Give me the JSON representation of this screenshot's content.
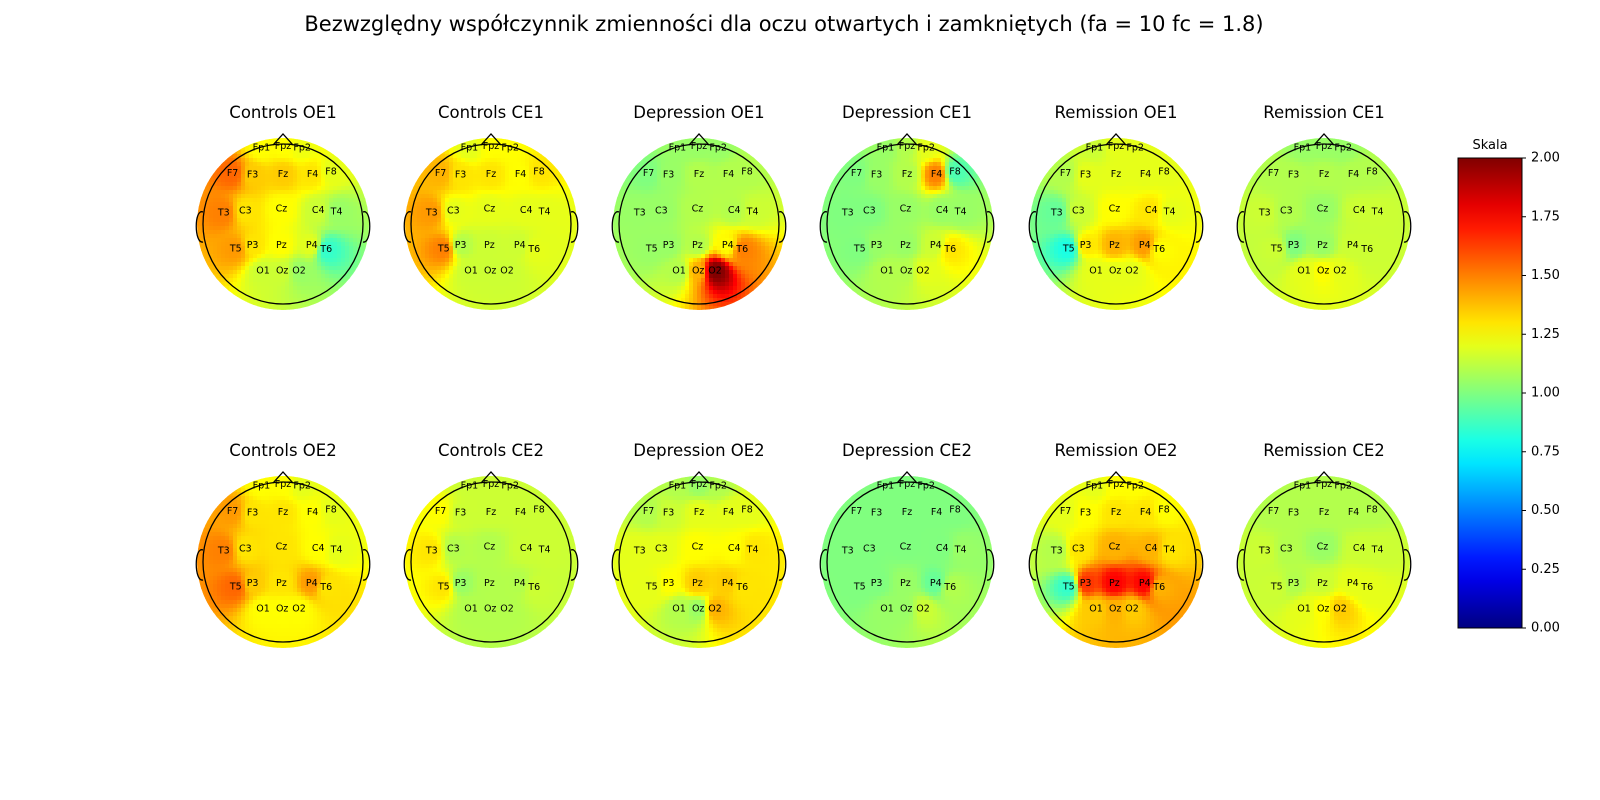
{
  "title": "Bezwzględny współczynnik zmienności dla oczu otwartych i zamkniętych (fa = 10 fc = 1.8)",
  "chart_data": {
    "type": "heatmap",
    "subtype": "eeg-topomap",
    "colormap": "jet",
    "electrodes": [
      "Fp1",
      "Fpz",
      "Fp2",
      "F7",
      "F3",
      "Fz",
      "F4",
      "F8",
      "T3",
      "C3",
      "Cz",
      "C4",
      "T4",
      "T5",
      "P3",
      "Pz",
      "P4",
      "T6",
      "O1",
      "Oz",
      "O2"
    ],
    "panels": [
      {
        "title": "Controls OE1",
        "values": [
          1.25,
          1.25,
          1.22,
          1.55,
          1.35,
          1.35,
          1.3,
          1.2,
          1.5,
          1.3,
          1.25,
          1.15,
          1.05,
          1.45,
          1.3,
          1.25,
          1.2,
          0.85,
          1.15,
          1.15,
          1.05
        ]
      },
      {
        "title": "Controls CE1",
        "values": [
          1.2,
          1.25,
          1.25,
          1.4,
          1.3,
          1.3,
          1.25,
          1.3,
          1.45,
          1.2,
          1.2,
          1.2,
          1.2,
          1.5,
          1.1,
          1.15,
          1.15,
          1.2,
          1.15,
          1.15,
          1.15
        ]
      },
      {
        "title": "Depression OE1",
        "values": [
          1.05,
          1.05,
          1.05,
          1.0,
          1.05,
          1.1,
          1.1,
          1.1,
          1.05,
          1.05,
          1.1,
          1.1,
          1.15,
          1.05,
          1.05,
          1.1,
          1.25,
          1.5,
          1.1,
          1.4,
          2.0
        ]
      },
      {
        "title": "Depression CE1",
        "values": [
          1.05,
          1.1,
          1.2,
          1.0,
          1.05,
          1.1,
          1.5,
          0.9,
          1.0,
          1.0,
          1.05,
          1.05,
          1.05,
          1.0,
          1.05,
          1.05,
          1.15,
          1.3,
          1.1,
          1.1,
          1.2
        ]
      },
      {
        "title": "Remission OE1",
        "values": [
          1.15,
          1.2,
          1.2,
          1.1,
          1.2,
          1.2,
          1.2,
          1.2,
          0.95,
          1.15,
          1.25,
          1.3,
          1.2,
          0.8,
          1.3,
          1.4,
          1.45,
          1.25,
          1.2,
          1.2,
          1.2
        ]
      },
      {
        "title": "Remission CE1",
        "values": [
          1.05,
          1.05,
          1.05,
          1.1,
          1.1,
          1.1,
          1.1,
          1.1,
          1.15,
          1.1,
          1.05,
          1.15,
          1.15,
          1.15,
          1.0,
          1.05,
          1.15,
          1.15,
          1.2,
          1.25,
          1.2
        ]
      },
      {
        "title": "Controls OE2",
        "values": [
          1.25,
          1.25,
          1.2,
          1.45,
          1.3,
          1.3,
          1.25,
          1.2,
          1.5,
          1.3,
          1.3,
          1.25,
          1.2,
          1.55,
          1.35,
          1.3,
          1.45,
          1.3,
          1.25,
          1.25,
          1.25
        ]
      },
      {
        "title": "Controls CE2",
        "values": [
          1.15,
          1.15,
          1.15,
          1.25,
          1.15,
          1.15,
          1.15,
          1.15,
          1.3,
          1.1,
          1.1,
          1.15,
          1.15,
          1.3,
          1.05,
          1.1,
          1.1,
          1.15,
          1.1,
          1.1,
          1.1
        ]
      },
      {
        "title": "Depression OE2",
        "values": [
          1.1,
          1.05,
          1.1,
          1.1,
          1.15,
          1.2,
          1.2,
          1.2,
          1.2,
          1.2,
          1.25,
          1.25,
          1.3,
          1.2,
          1.25,
          1.35,
          1.35,
          1.3,
          1.1,
          1.05,
          1.4
        ]
      },
      {
        "title": "Depression CE2",
        "values": [
          1.0,
          1.0,
          1.0,
          1.0,
          1.0,
          1.0,
          1.0,
          1.0,
          1.0,
          1.0,
          1.0,
          1.0,
          1.05,
          1.0,
          1.0,
          1.05,
          0.95,
          1.1,
          1.05,
          1.05,
          1.15
        ]
      },
      {
        "title": "Remission OE2",
        "values": [
          1.2,
          1.25,
          1.25,
          1.2,
          1.25,
          1.3,
          1.3,
          1.25,
          1.1,
          1.3,
          1.4,
          1.4,
          1.3,
          0.85,
          1.65,
          1.75,
          1.75,
          1.4,
          1.35,
          1.4,
          1.35
        ]
      },
      {
        "title": "Remission CE2",
        "values": [
          1.1,
          1.1,
          1.1,
          1.1,
          1.1,
          1.1,
          1.1,
          1.1,
          1.15,
          1.1,
          1.05,
          1.15,
          1.15,
          1.15,
          1.1,
          1.15,
          1.2,
          1.2,
          1.2,
          1.25,
          1.35
        ]
      }
    ],
    "colorbar": {
      "title": "Skala",
      "range": [
        0,
        2
      ],
      "ticks": [
        "0.00",
        "0.25",
        "0.50",
        "0.75",
        "1.00",
        "1.25",
        "1.50",
        "1.75",
        "2.00"
      ]
    }
  }
}
